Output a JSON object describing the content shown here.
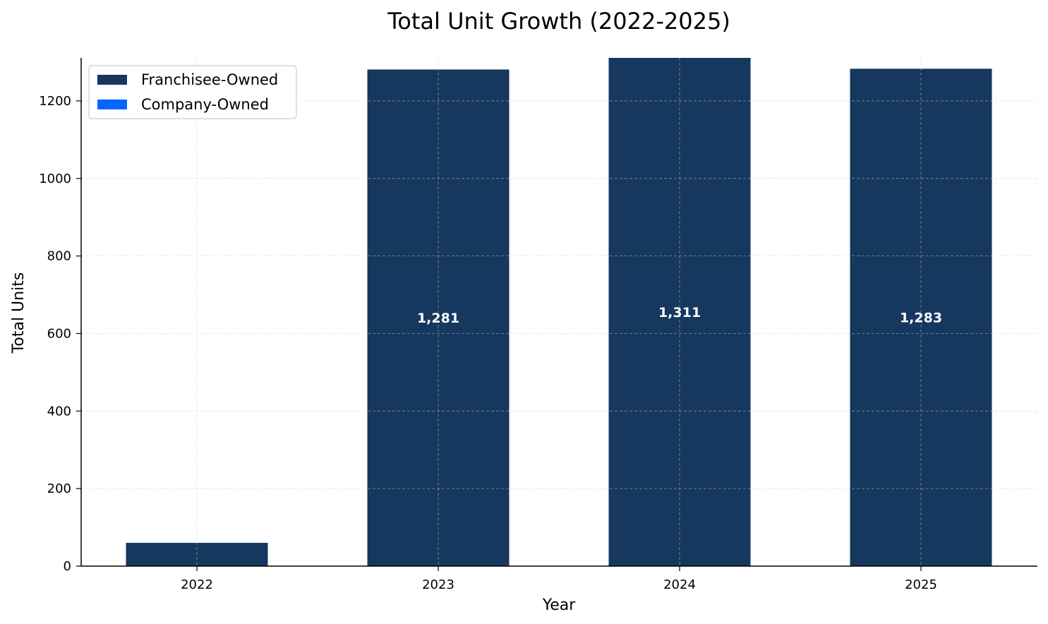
{
  "chart_data": {
    "type": "bar",
    "stacked": true,
    "title": "Total Unit Growth (2022-2025)",
    "xlabel": "Year",
    "ylabel": "Total Units",
    "categories": [
      "2022",
      "2023",
      "2024",
      "2025"
    ],
    "series": [
      {
        "name": "Franchisee-Owned",
        "color": "#16375e",
        "values": [
          60,
          1281,
          1311,
          1283
        ]
      },
      {
        "name": "Company-Owned",
        "color": "#0066ff",
        "values": [
          0,
          0,
          0,
          0
        ]
      }
    ],
    "data_labels": [
      "",
      "1,281",
      "1,311",
      "1,283"
    ],
    "ylim": [
      0,
      1311
    ],
    "yticks": [
      0,
      200,
      400,
      600,
      800,
      1000,
      1200
    ],
    "grid": true,
    "legend_position": "top-left"
  }
}
